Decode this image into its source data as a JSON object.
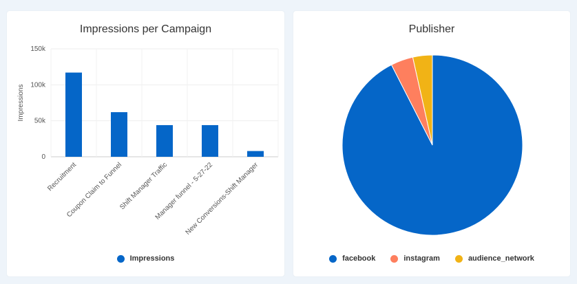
{
  "charts": [
    {
      "title": "Impressions per Campaign",
      "chart_data": {
        "type": "bar",
        "title": "Impressions per Campaign",
        "categories": [
          "Recruitment",
          "Coupon Claim to Funnel",
          "Shift Manager Traffic",
          "Manager funnel - 5-27-22",
          "New Conversions-Shift Manager"
        ],
        "series": [
          {
            "name": "Impressions",
            "values": [
              117000,
              62000,
              44000,
              44000,
              8000
            ]
          }
        ],
        "xlabel": "",
        "ylabel": "Impressions",
        "ylim": [
          0,
          150000
        ],
        "yticks": [
          "0",
          "50k",
          "100k",
          "150k"
        ],
        "ytick_values": [
          0,
          50000,
          100000,
          150000
        ],
        "grid": true,
        "legend": "bottom",
        "color": "#0566c8"
      }
    },
    {
      "title": "Publisher",
      "chart_data": {
        "type": "pie",
        "title": "Publisher",
        "labels": [
          "facebook",
          "instagram",
          "audience_network"
        ],
        "values": [
          92.5,
          4.0,
          3.5
        ],
        "colors": [
          "#0566c8",
          "#fe7f5e",
          "#f1b316"
        ],
        "legend": "bottom"
      }
    }
  ]
}
